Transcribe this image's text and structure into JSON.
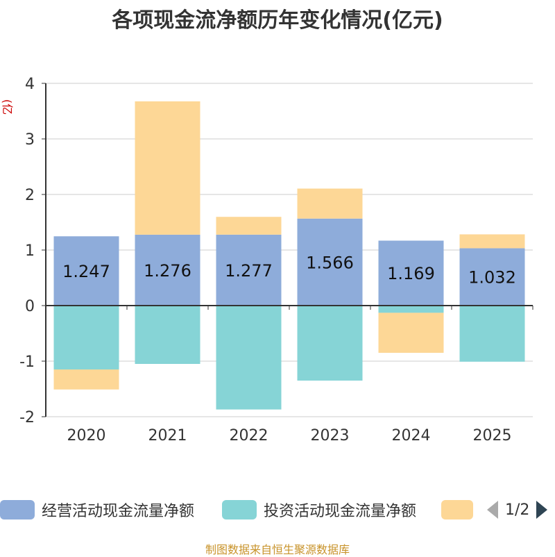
{
  "chart_data": {
    "type": "bar",
    "stacked": true,
    "title": "各项现金流净额历年变化情况(亿元)",
    "ylabel": "(亿元)",
    "xlabel": "",
    "categories": [
      "2020",
      "2021",
      "2022",
      "2023",
      "2024",
      "2025"
    ],
    "ylim": [
      -2,
      4
    ],
    "yticks": [
      4,
      3,
      2,
      1,
      0,
      -1,
      -2
    ],
    "grid": true,
    "series": [
      {
        "name": "经营活动现金流量净额",
        "color": "#8eacda",
        "values": [
          1.247,
          1.276,
          1.277,
          1.566,
          1.169,
          1.032
        ],
        "labels": [
          "1.247",
          "1.276",
          "1.277",
          "1.566",
          "1.169",
          "1.032"
        ]
      },
      {
        "name": "投资活动现金流量净额",
        "color": "#86d4d6",
        "values": [
          -1.15,
          -1.05,
          -1.87,
          -1.35,
          -0.13,
          -1.01
        ]
      },
      {
        "name": "",
        "color": "#fdd796",
        "values": [
          -0.36,
          2.4,
          0.32,
          0.54,
          -0.72,
          0.25
        ]
      }
    ],
    "legend_position": "bottom"
  },
  "legend": {
    "items": [
      {
        "label": "经营活动现金流量净额",
        "color": "#8eacda"
      },
      {
        "label": "投资活动现金流量净额",
        "color": "#86d4d6"
      },
      {
        "label": "",
        "color": "#fdd796"
      }
    ],
    "pager": "1/2"
  },
  "source_text": "制图数据来自恒生聚源数据库",
  "colors": {
    "title": "#333333",
    "ylabel": "#cc0000",
    "source": "#c8932a",
    "axis": "#333333",
    "grid": "#cccccc",
    "arrow_disabled": "#aaaaaa",
    "arrow_active": "#2f4554"
  }
}
